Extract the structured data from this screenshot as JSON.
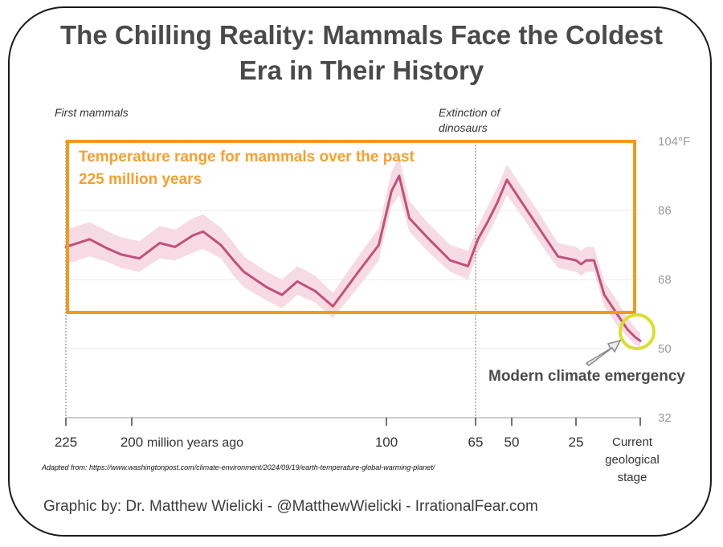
{
  "title": "The Chilling Reality: Mammals Face the Coldest Era in Their History",
  "annotations": {
    "first_mammals": "First mammals",
    "dinosaur_extinction": "Extinction of dinosaurs",
    "box_label": "Temperature range for mammals over the past 225 million years",
    "emergency": "Modern climate emergency"
  },
  "source": "Adapted from: https://www.washingtonpost.com/climate-environment/2024/09/19/earth-temperature-global-warming-planet/",
  "credit": "Graphic by: Dr. Matthew Wielicki - @MatthewWielicki - IrrationalFear.com",
  "colors": {
    "line": "#c1507a",
    "band": "#f6dbe5",
    "box": "#f39a1e",
    "highlight": "#d9e030",
    "axis_text": "#333333",
    "tick_right": "#9a9a9a"
  },
  "chart_data": {
    "type": "line",
    "x_unit_label": "million years ago",
    "x_ticks": [
      {
        "value": 225,
        "label": "225"
      },
      {
        "value": 200,
        "label": "200"
      },
      {
        "value": 100,
        "label": "100"
      },
      {
        "value": 65,
        "label": "65"
      },
      {
        "value": 50,
        "label": "50"
      },
      {
        "value": 25,
        "label": "25"
      },
      {
        "value": 0,
        "label": "Current geological stage"
      }
    ],
    "y_ticks": [
      {
        "value": 104,
        "label": "104°F"
      },
      {
        "value": 86,
        "label": "86"
      },
      {
        "value": 68,
        "label": "68"
      },
      {
        "value": 50,
        "label": "50"
      },
      {
        "value": 32,
        "label": "32"
      }
    ],
    "ylim": [
      32,
      104
    ],
    "xlim": [
      225,
      0
    ],
    "series": [
      {
        "x": [
          225,
          216,
          209,
          204,
          197,
          189,
          183,
          176,
          172,
          165,
          160,
          156,
          147,
          141,
          135,
          128,
          121,
          111,
          103,
          98,
          95,
          91,
          84,
          75,
          68,
          64,
          60,
          56,
          52,
          45,
          39,
          32,
          25,
          23,
          21,
          18,
          14,
          9,
          5,
          2,
          0
        ],
        "y": [
          76.5,
          78.5,
          76,
          74.5,
          73.5,
          77.5,
          76.5,
          79.5,
          80.5,
          77,
          73,
          70,
          66,
          64,
          67.5,
          65,
          61,
          70,
          77,
          91,
          95,
          84,
          79,
          73,
          71.5,
          78.5,
          83,
          88,
          94,
          87,
          81,
          74,
          73,
          72,
          73,
          73,
          64,
          59,
          55,
          53,
          52
        ],
        "low": [
          72,
          74,
          72.5,
          71,
          70,
          73.5,
          73,
          75,
          76,
          73.5,
          69,
          66,
          62.5,
          60.5,
          64,
          62,
          58,
          66,
          73,
          87,
          90,
          80.5,
          75.5,
          70,
          68,
          75,
          79.5,
          84.5,
          90,
          83.5,
          77.5,
          71,
          70,
          69,
          70,
          70,
          61,
          56,
          53,
          51,
          50.5
        ],
        "high": [
          81,
          83,
          80.5,
          79,
          78,
          82,
          81,
          84,
          85,
          81.5,
          77.5,
          74,
          70,
          68,
          71.5,
          69,
          64.5,
          74,
          81.5,
          96,
          100,
          88.5,
          83,
          77,
          75.5,
          82,
          87,
          92,
          98,
          91,
          85,
          77.5,
          76.5,
          75.5,
          76.5,
          76.5,
          67.5,
          62.5,
          58,
          55.5,
          54
        ]
      }
    ]
  }
}
